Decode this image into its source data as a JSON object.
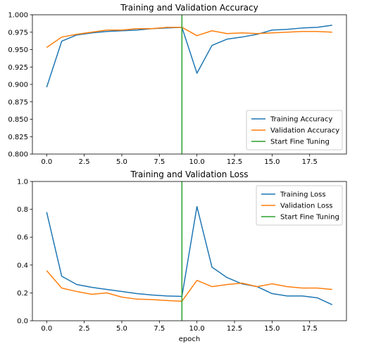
{
  "chart_data": [
    {
      "type": "line",
      "title": "Training and Validation Accuracy",
      "xlabel": "",
      "ylabel": "",
      "xlim": [
        -0.95,
        19.95
      ],
      "ylim": [
        0.8,
        1.0
      ],
      "xticks": [
        0.0,
        2.5,
        5.0,
        7.5,
        10.0,
        12.5,
        15.0,
        17.5
      ],
      "xtick_labels": [
        "0.0",
        "2.5",
        "5.0",
        "7.5",
        "10.0",
        "12.5",
        "15.0",
        "17.5"
      ],
      "yticks": [
        0.8,
        0.825,
        0.85,
        0.875,
        0.9,
        0.925,
        0.95,
        0.975,
        1.0
      ],
      "ytick_labels": [
        "0.800",
        "0.825",
        "0.850",
        "0.875",
        "0.900",
        "0.925",
        "0.950",
        "0.975",
        "1.000"
      ],
      "grid": false,
      "legend_position": "lower-right",
      "x": [
        0,
        1,
        2,
        3,
        4,
        5,
        6,
        7,
        8,
        9,
        10,
        11,
        12,
        13,
        14,
        15,
        16,
        17,
        18,
        19
      ],
      "series": [
        {
          "name": "Training Accuracy",
          "color": "#1f77b4",
          "values": [
            0.896,
            0.962,
            0.971,
            0.974,
            0.976,
            0.977,
            0.978,
            0.98,
            0.981,
            0.982,
            0.916,
            0.956,
            0.965,
            0.968,
            0.972,
            0.978,
            0.979,
            0.981,
            0.982,
            0.985
          ]
        },
        {
          "name": "Validation Accuracy",
          "color": "#ff7f0e",
          "values": [
            0.953,
            0.968,
            0.972,
            0.975,
            0.978,
            0.978,
            0.98,
            0.98,
            0.982,
            0.982,
            0.97,
            0.977,
            0.973,
            0.974,
            0.973,
            0.974,
            0.975,
            0.976,
            0.976,
            0.975
          ]
        }
      ],
      "vline": {
        "name": "Start Fine Tuning",
        "color": "#2ca02c",
        "x": 9
      }
    },
    {
      "type": "line",
      "title": "Training and Validation Loss",
      "xlabel": "epoch",
      "ylabel": "",
      "xlim": [
        -0.95,
        19.95
      ],
      "ylim": [
        0.0,
        1.0
      ],
      "xticks": [
        0.0,
        2.5,
        5.0,
        7.5,
        10.0,
        12.5,
        15.0,
        17.5
      ],
      "xtick_labels": [
        "0.0",
        "2.5",
        "5.0",
        "7.5",
        "10.0",
        "12.5",
        "15.0",
        "17.5"
      ],
      "yticks": [
        0.0,
        0.2,
        0.4,
        0.6,
        0.8,
        1.0
      ],
      "ytick_labels": [
        "0.0",
        "0.2",
        "0.4",
        "0.6",
        "0.8",
        "1.0"
      ],
      "grid": false,
      "legend_position": "top-right",
      "x": [
        0,
        1,
        2,
        3,
        4,
        5,
        6,
        7,
        8,
        9,
        10,
        11,
        12,
        13,
        14,
        15,
        16,
        17,
        18,
        19
      ],
      "series": [
        {
          "name": "Training Loss",
          "color": "#1f77b4",
          "values": [
            0.78,
            0.32,
            0.26,
            0.24,
            0.225,
            0.21,
            0.195,
            0.185,
            0.178,
            0.175,
            0.82,
            0.385,
            0.31,
            0.265,
            0.245,
            0.195,
            0.178,
            0.178,
            0.165,
            0.115
          ]
        },
        {
          "name": "Validation Loss",
          "color": "#ff7f0e",
          "values": [
            0.36,
            0.235,
            0.21,
            0.19,
            0.2,
            0.17,
            0.155,
            0.152,
            0.145,
            0.14,
            0.29,
            0.245,
            0.26,
            0.27,
            0.245,
            0.265,
            0.245,
            0.235,
            0.235,
            0.225
          ]
        }
      ],
      "vline": {
        "name": "Start Fine Tuning",
        "color": "#2ca02c",
        "x": 9
      }
    }
  ]
}
